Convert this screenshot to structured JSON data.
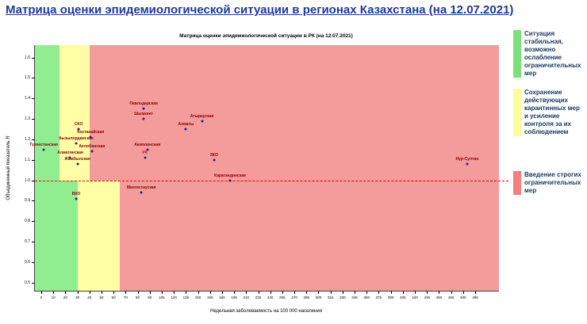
{
  "page": {
    "title": "Матрица оценки эпидемиологической ситуации в регионах Казахстана (на 12.07.2021)"
  },
  "legend": {
    "items": [
      {
        "label": "Ситуация стабильная, возможно ослабление ограничительных мер",
        "color": "#7cdf7c"
      },
      {
        "label": "Сохранение действующих карантинных мер и усиление контроля за их соблюдением",
        "color": "#ffff99"
      },
      {
        "label": "Введение строгих ограничительных мер",
        "color": "#f57e7e"
      }
    ]
  },
  "chart_data": {
    "type": "scatter",
    "title": "Матрица оценки эпидемиологической ситуации в РК (на 12.07.2021)",
    "xlabel": "Недельная заболеваемость на 100 000 населения",
    "ylabel": "Объединенный показатель R",
    "x_ticks": [
      0,
      10,
      20,
      30,
      40,
      50,
      60,
      70,
      80,
      90,
      105,
      120,
      135,
      150,
      165,
      180,
      195,
      210,
      225,
      240,
      255,
      270,
      285,
      300,
      315,
      330,
      345,
      360,
      375,
      390,
      405,
      420,
      435,
      450,
      465,
      480,
      495
    ],
    "y_ticks": [
      0.5,
      0.6,
      0.7,
      0.8,
      0.9,
      1.0,
      1.1,
      1.2,
      1.3,
      1.4,
      1.5,
      1.6
    ],
    "ylim": [
      0.46,
      1.66
    ],
    "grid": false,
    "legend_position": "right",
    "reference_line": {
      "y": 1.0,
      "color": "#ff0000",
      "style": "dashed"
    },
    "zones": [
      {
        "name": "green-upper",
        "color": "#90ee90",
        "x0": null,
        "x1": 15,
        "y0": 1.0,
        "y1": null
      },
      {
        "name": "yellow-upper",
        "color": "#ffffa6",
        "x0": 15,
        "x1": 40,
        "y0": 1.0,
        "y1": null
      },
      {
        "name": "red-upper",
        "color": "#f49b9b",
        "x0": 40,
        "x1": null,
        "y0": 1.0,
        "y1": null
      },
      {
        "name": "green-lower",
        "color": "#90ee90",
        "x0": null,
        "x1": 30,
        "y0": null,
        "y1": 1.0
      },
      {
        "name": "yellow-lower",
        "color": "#ffffa6",
        "x0": 30,
        "x1": 65,
        "y0": null,
        "y1": 1.0
      },
      {
        "name": "red-lower",
        "color": "#f49b9b",
        "x0": 65,
        "x1": null,
        "y0": null,
        "y1": 1.0
      }
    ],
    "point_color": "#202080",
    "point_label_color": "#8b0000",
    "points": [
      {
        "label": "Туркестанская",
        "x": 2,
        "y": 1.15
      },
      {
        "label": "СКО",
        "x": 31,
        "y": 1.25
      },
      {
        "label": "Костанайская",
        "x": 41,
        "y": 1.21
      },
      {
        "label": "Кызылординская",
        "x": 29,
        "y": 1.18
      },
      {
        "label": "Алматинская",
        "x": 24,
        "y": 1.11
      },
      {
        "label": "Жамбылская",
        "x": 30,
        "y": 1.08
      },
      {
        "label": "Актюбинская",
        "x": 42,
        "y": 1.14
      },
      {
        "label": "ВКО",
        "x": 29,
        "y": 0.91
      },
      {
        "label": "Павлодарская",
        "x": 85,
        "y": 1.35
      },
      {
        "label": "Шымкент",
        "x": 85,
        "y": 1.3
      },
      {
        "label": "Акмолинская",
        "x": 88,
        "y": 1.15
      },
      {
        "label": "РК",
        "x": 86,
        "y": 1.11,
        "label_color": "#ff0000"
      },
      {
        "label": "Мангистауская",
        "x": 83,
        "y": 0.94
      },
      {
        "label": "Алматы",
        "x": 135,
        "y": 1.25
      },
      {
        "label": "Атырауская",
        "x": 155,
        "y": 1.29
      },
      {
        "label": "ЗКО",
        "x": 170,
        "y": 1.1
      },
      {
        "label": "Карагандинская",
        "x": 190,
        "y": 1.0
      },
      {
        "label": "Нур-Султан",
        "x": 485,
        "y": 1.08
      }
    ]
  }
}
